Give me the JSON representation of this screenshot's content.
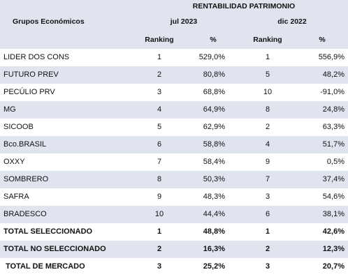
{
  "header": {
    "super_title": "RENTABILIDAD PATRIMONIO",
    "group_label": "Grupos Económicos",
    "period_1": "jul 2023",
    "period_2": "dic 2022",
    "ranking_label": "Ranking",
    "percent_label": "%"
  },
  "rows": [
    {
      "name": "LIDER DOS CONS",
      "rank_1": "1",
      "pct_1": "529,0%",
      "rank_2": "1",
      "pct_2": "556,9%"
    },
    {
      "name": "FUTURO PREV",
      "rank_1": "2",
      "pct_1": "80,8%",
      "rank_2": "5",
      "pct_2": "48,2%"
    },
    {
      "name": "PECÚLIO PRV",
      "rank_1": "3",
      "pct_1": "68,8%",
      "rank_2": "10",
      "pct_2": "-91,0%"
    },
    {
      "name": "MG",
      "rank_1": "4",
      "pct_1": "64,9%",
      "rank_2": "8",
      "pct_2": "24,8%"
    },
    {
      "name": "SICOOB",
      "rank_1": "5",
      "pct_1": "62,9%",
      "rank_2": "2",
      "pct_2": "63,3%"
    },
    {
      "name": "Bco.BRASIL",
      "rank_1": "6",
      "pct_1": "58,8%",
      "rank_2": "4",
      "pct_2": "51,7%"
    },
    {
      "name": "OXXY",
      "rank_1": "7",
      "pct_1": "58,4%",
      "rank_2": "9",
      "pct_2": "0,5%"
    },
    {
      "name": "SOMBRERO",
      "rank_1": "8",
      "pct_1": "50,3%",
      "rank_2": "7",
      "pct_2": "37,4%"
    },
    {
      "name": "SAFRA",
      "rank_1": "9",
      "pct_1": "48,3%",
      "rank_2": "3",
      "pct_2": "54,6%"
    },
    {
      "name": "BRADESCO",
      "rank_1": "10",
      "pct_1": "44,4%",
      "rank_2": "6",
      "pct_2": "38,1%"
    },
    {
      "name": "TOTAL SELECCIONADO",
      "rank_1": "1",
      "pct_1": "48,8%",
      "rank_2": "1",
      "pct_2": "42,6%"
    },
    {
      "name": "TOTAL NO SELECCIONADO",
      "rank_1": "2",
      "pct_1": "16,3%",
      "rank_2": "2",
      "pct_2": "12,3%"
    },
    {
      "name": "TOTAL DE MERCADO",
      "rank_1": "3",
      "pct_1": "25,2%",
      "rank_2": "3",
      "pct_2": "20,7%"
    }
  ],
  "colors": {
    "band": "#dfe4ee",
    "background": "#ffffff",
    "text": "#111111"
  }
}
